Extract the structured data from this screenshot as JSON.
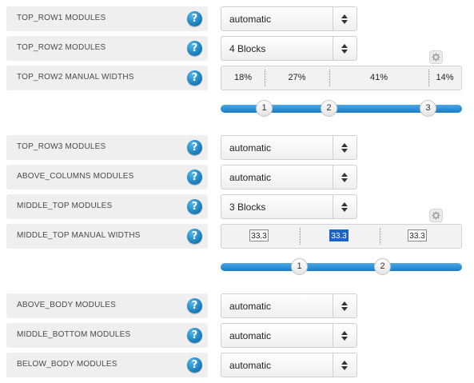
{
  "rows": {
    "top_row1": {
      "label": "TOP_ROW1 MODULES",
      "value": "automatic"
    },
    "top_row2": {
      "label": "TOP_ROW2 MODULES",
      "value": "4 Blocks"
    },
    "top_row2_widths": {
      "label": "TOP_ROW2 MANUAL WIDTHS",
      "segments": [
        "18%",
        "27%",
        "41%",
        "14%"
      ],
      "handles": [
        "1",
        "2",
        "3"
      ]
    },
    "top_row3": {
      "label": "TOP_ROW3 MODULES",
      "value": "automatic"
    },
    "above_columns": {
      "label": "ABOVE_COLUMNS MODULES",
      "value": "automatic"
    },
    "middle_top": {
      "label": "MIDDLE_TOP MODULES",
      "value": "3 Blocks"
    },
    "middle_top_widths": {
      "label": "MIDDLE_TOP MANUAL WIDTHS",
      "segments": [
        "33.3",
        "33.3",
        "33.3"
      ],
      "handles": [
        "1",
        "2"
      ]
    },
    "above_body": {
      "label": "ABOVE_BODY MODULES",
      "value": "automatic"
    },
    "middle_bottom": {
      "label": "MIDDLE_BOTTOM MODULES",
      "value": "automatic"
    },
    "below_body": {
      "label": "BELOW_BODY MODULES",
      "value": "automatic"
    }
  },
  "help_glyph": "?",
  "icons": {
    "help": "help-icon",
    "settings": "gear-icon",
    "select": "chevron-updown-icon"
  },
  "colors": {
    "accent": "#1f86c4",
    "slider": "#2b8fd6",
    "selection": "#1d62c8"
  }
}
